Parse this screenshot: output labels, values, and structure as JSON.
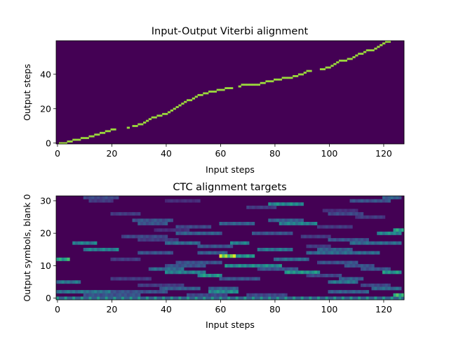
{
  "chart_data": [
    {
      "type": "heatmap",
      "title": "Input-Output Viterbi alignment",
      "xlabel": "Input steps",
      "ylabel": "Output steps",
      "xlim": [
        0,
        127
      ],
      "ylim": [
        0,
        59
      ],
      "xticks": [
        0,
        20,
        40,
        60,
        80,
        100,
        120
      ],
      "yticks": [
        0,
        20,
        40
      ],
      "colormap": "viridis",
      "alignment_path": [
        [
          1,
          0
        ],
        [
          2,
          0
        ],
        [
          3,
          0
        ],
        [
          4,
          1
        ],
        [
          5,
          1
        ],
        [
          6,
          2
        ],
        [
          7,
          2
        ],
        [
          8,
          2
        ],
        [
          9,
          3
        ],
        [
          10,
          3
        ],
        [
          11,
          3
        ],
        [
          12,
          4
        ],
        [
          13,
          4
        ],
        [
          14,
          5
        ],
        [
          15,
          5
        ],
        [
          16,
          6
        ],
        [
          17,
          6
        ],
        [
          18,
          7
        ],
        [
          19,
          7
        ],
        [
          20,
          8
        ],
        [
          21,
          8
        ],
        [
          26,
          9
        ],
        [
          28,
          10
        ],
        [
          29,
          10
        ],
        [
          30,
          11
        ],
        [
          31,
          11
        ],
        [
          32,
          12
        ],
        [
          33,
          13
        ],
        [
          34,
          14
        ],
        [
          35,
          15
        ],
        [
          36,
          15
        ],
        [
          37,
          16
        ],
        [
          38,
          16
        ],
        [
          39,
          17
        ],
        [
          40,
          17
        ],
        [
          41,
          18
        ],
        [
          42,
          19
        ],
        [
          43,
          20
        ],
        [
          44,
          21
        ],
        [
          45,
          22
        ],
        [
          46,
          23
        ],
        [
          47,
          24
        ],
        [
          48,
          25
        ],
        [
          49,
          25
        ],
        [
          50,
          26
        ],
        [
          51,
          27
        ],
        [
          52,
          28
        ],
        [
          53,
          28
        ],
        [
          54,
          29
        ],
        [
          55,
          29
        ],
        [
          56,
          30
        ],
        [
          57,
          30
        ],
        [
          58,
          30
        ],
        [
          59,
          31
        ],
        [
          60,
          31
        ],
        [
          61,
          31
        ],
        [
          62,
          32
        ],
        [
          63,
          32
        ],
        [
          64,
          32
        ],
        [
          67,
          33
        ],
        [
          68,
          34
        ],
        [
          69,
          34
        ],
        [
          70,
          34
        ],
        [
          71,
          34
        ],
        [
          72,
          34
        ],
        [
          73,
          34
        ],
        [
          74,
          34
        ],
        [
          75,
          35
        ],
        [
          76,
          35
        ],
        [
          77,
          36
        ],
        [
          78,
          36
        ],
        [
          79,
          36
        ],
        [
          80,
          37
        ],
        [
          81,
          37
        ],
        [
          82,
          37
        ],
        [
          83,
          38
        ],
        [
          84,
          38
        ],
        [
          85,
          38
        ],
        [
          86,
          38
        ],
        [
          87,
          39
        ],
        [
          88,
          39
        ],
        [
          89,
          40
        ],
        [
          90,
          40
        ],
        [
          91,
          41
        ],
        [
          92,
          42
        ],
        [
          93,
          42
        ],
        [
          97,
          43
        ],
        [
          98,
          43
        ],
        [
          99,
          44
        ],
        [
          100,
          44
        ],
        [
          101,
          45
        ],
        [
          102,
          46
        ],
        [
          103,
          47
        ],
        [
          104,
          48
        ],
        [
          105,
          48
        ],
        [
          106,
          48
        ],
        [
          107,
          49
        ],
        [
          108,
          49
        ],
        [
          109,
          50
        ],
        [
          110,
          51
        ],
        [
          111,
          52
        ],
        [
          112,
          52
        ],
        [
          113,
          53
        ],
        [
          114,
          54
        ],
        [
          115,
          54
        ],
        [
          116,
          54
        ],
        [
          117,
          55
        ],
        [
          118,
          56
        ],
        [
          119,
          57
        ],
        [
          120,
          58
        ],
        [
          121,
          59
        ],
        [
          122,
          59
        ]
      ]
    },
    {
      "type": "heatmap",
      "title": "CTC alignment targets",
      "xlabel": "Input steps",
      "ylabel": "Output symbols, blank 0",
      "xlim": [
        0,
        127
      ],
      "ylim": [
        0,
        31
      ],
      "xticks": [
        0,
        20,
        40,
        60,
        80,
        100,
        120
      ],
      "yticks": [
        0,
        10,
        20,
        30
      ],
      "colormap": "viridis",
      "blank_row_intensity": 0.55,
      "segments": [
        [
          31,
          10,
          22,
          0.25
        ],
        [
          31,
          120,
          126,
          0.35
        ],
        [
          30,
          12,
          20,
          0.2
        ],
        [
          30,
          40,
          52,
          0.15
        ],
        [
          30,
          108,
          122,
          0.3
        ],
        [
          29,
          78,
          90,
          0.55
        ],
        [
          28,
          70,
          80,
          0.2
        ],
        [
          27,
          98,
          110,
          0.15
        ],
        [
          26,
          20,
          30,
          0.2
        ],
        [
          26,
          100,
          112,
          0.25
        ],
        [
          25,
          110,
          120,
          0.2
        ],
        [
          24,
          28,
          42,
          0.3
        ],
        [
          24,
          78,
          90,
          0.35
        ],
        [
          23,
          30,
          40,
          0.3
        ],
        [
          23,
          60,
          72,
          0.35
        ],
        [
          23,
          82,
          95,
          0.5
        ],
        [
          22,
          44,
          56,
          0.25
        ],
        [
          22,
          96,
          108,
          0.2
        ],
        [
          21,
          124,
          127,
          0.7
        ],
        [
          21,
          36,
          48,
          0.15
        ],
        [
          20,
          44,
          60,
          0.35
        ],
        [
          20,
          72,
          86,
          0.3
        ],
        [
          20,
          118,
          126,
          0.55
        ],
        [
          19,
          24,
          40,
          0.25
        ],
        [
          19,
          90,
          100,
          0.2
        ],
        [
          18,
          30,
          44,
          0.2
        ],
        [
          18,
          100,
          114,
          0.3
        ],
        [
          17,
          6,
          14,
          0.5
        ],
        [
          17,
          40,
          52,
          0.4
        ],
        [
          17,
          64,
          70,
          0.5
        ],
        [
          17,
          108,
          126,
          0.4
        ],
        [
          16,
          52,
          64,
          0.3
        ],
        [
          16,
          92,
          100,
          0.2
        ],
        [
          15,
          10,
          22,
          0.5
        ],
        [
          15,
          74,
          86,
          0.45
        ],
        [
          15,
          96,
          108,
          0.35
        ],
        [
          14,
          30,
          42,
          0.3
        ],
        [
          14,
          52,
          62,
          0.35
        ],
        [
          14,
          92,
          118,
          0.4
        ],
        [
          13,
          60,
          72,
          0.6
        ],
        [
          13,
          60,
          65,
          0.95
        ],
        [
          12,
          0,
          4,
          0.7
        ],
        [
          12,
          20,
          30,
          0.2
        ],
        [
          12,
          80,
          92,
          0.4
        ],
        [
          11,
          44,
          60,
          0.3
        ],
        [
          11,
          96,
          110,
          0.3
        ],
        [
          10,
          40,
          54,
          0.3
        ],
        [
          10,
          62,
          82,
          0.55
        ],
        [
          10,
          106,
          116,
          0.3
        ],
        [
          9,
          34,
          46,
          0.4
        ],
        [
          9,
          74,
          88,
          0.3
        ],
        [
          9,
          112,
          122,
          0.3
        ],
        [
          8,
          40,
          54,
          0.5
        ],
        [
          8,
          84,
          96,
          0.6
        ],
        [
          8,
          120,
          126,
          0.6
        ],
        [
          7,
          52,
          60,
          0.6
        ],
        [
          7,
          92,
          104,
          0.25
        ],
        [
          6,
          20,
          34,
          0.2
        ],
        [
          6,
          60,
          74,
          0.3
        ],
        [
          6,
          104,
          112,
          0.35
        ],
        [
          5,
          0,
          8,
          0.45
        ],
        [
          5,
          100,
          110,
          0.45
        ],
        [
          4,
          30,
          46,
          0.2
        ],
        [
          4,
          112,
          122,
          0.25
        ],
        [
          3,
          38,
          52,
          0.35
        ],
        [
          3,
          56,
          66,
          0.35
        ],
        [
          3,
          116,
          126,
          0.4
        ],
        [
          2,
          0,
          20,
          0.45
        ],
        [
          2,
          20,
          40,
          0.3
        ],
        [
          2,
          56,
          66,
          0.55
        ],
        [
          2,
          100,
          114,
          0.35
        ],
        [
          1,
          10,
          30,
          0.3
        ],
        [
          1,
          48,
          62,
          0.25
        ],
        [
          1,
          70,
          84,
          0.25
        ],
        [
          1,
          124,
          127,
          0.8
        ]
      ]
    }
  ]
}
